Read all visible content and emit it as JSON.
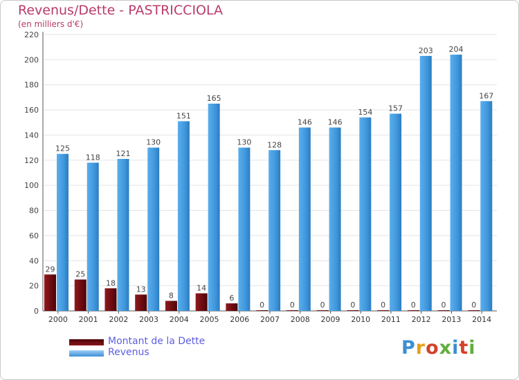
{
  "chart_data": {
    "type": "bar",
    "title": "Revenus/Dette - PASTRICCIOLA",
    "subtitle": "(en milliers d'€)",
    "categories": [
      "2000",
      "2001",
      "2002",
      "2003",
      "2004",
      "2005",
      "2006",
      "2007",
      "2008",
      "2009",
      "2010",
      "2011",
      "2012",
      "2013",
      "2014"
    ],
    "series": [
      {
        "name": "Montant de la Dette",
        "color": "#7a0f14",
        "values": [
          29,
          25,
          18,
          13,
          8,
          14,
          6,
          0,
          0,
          0,
          0,
          0,
          0,
          0,
          0
        ]
      },
      {
        "name": "Revenus",
        "color": "#4a9fe0",
        "values": [
          125,
          118,
          121,
          130,
          151,
          165,
          130,
          128,
          146,
          146,
          154,
          157,
          203,
          204,
          167
        ]
      }
    ],
    "yticks": [
      0,
      20,
      40,
      60,
      80,
      100,
      120,
      140,
      160,
      180,
      200,
      220
    ],
    "ylim": [
      0,
      220
    ],
    "grid": true,
    "legend": "bottom-left"
  },
  "logo": {
    "text": "Proxiti"
  }
}
